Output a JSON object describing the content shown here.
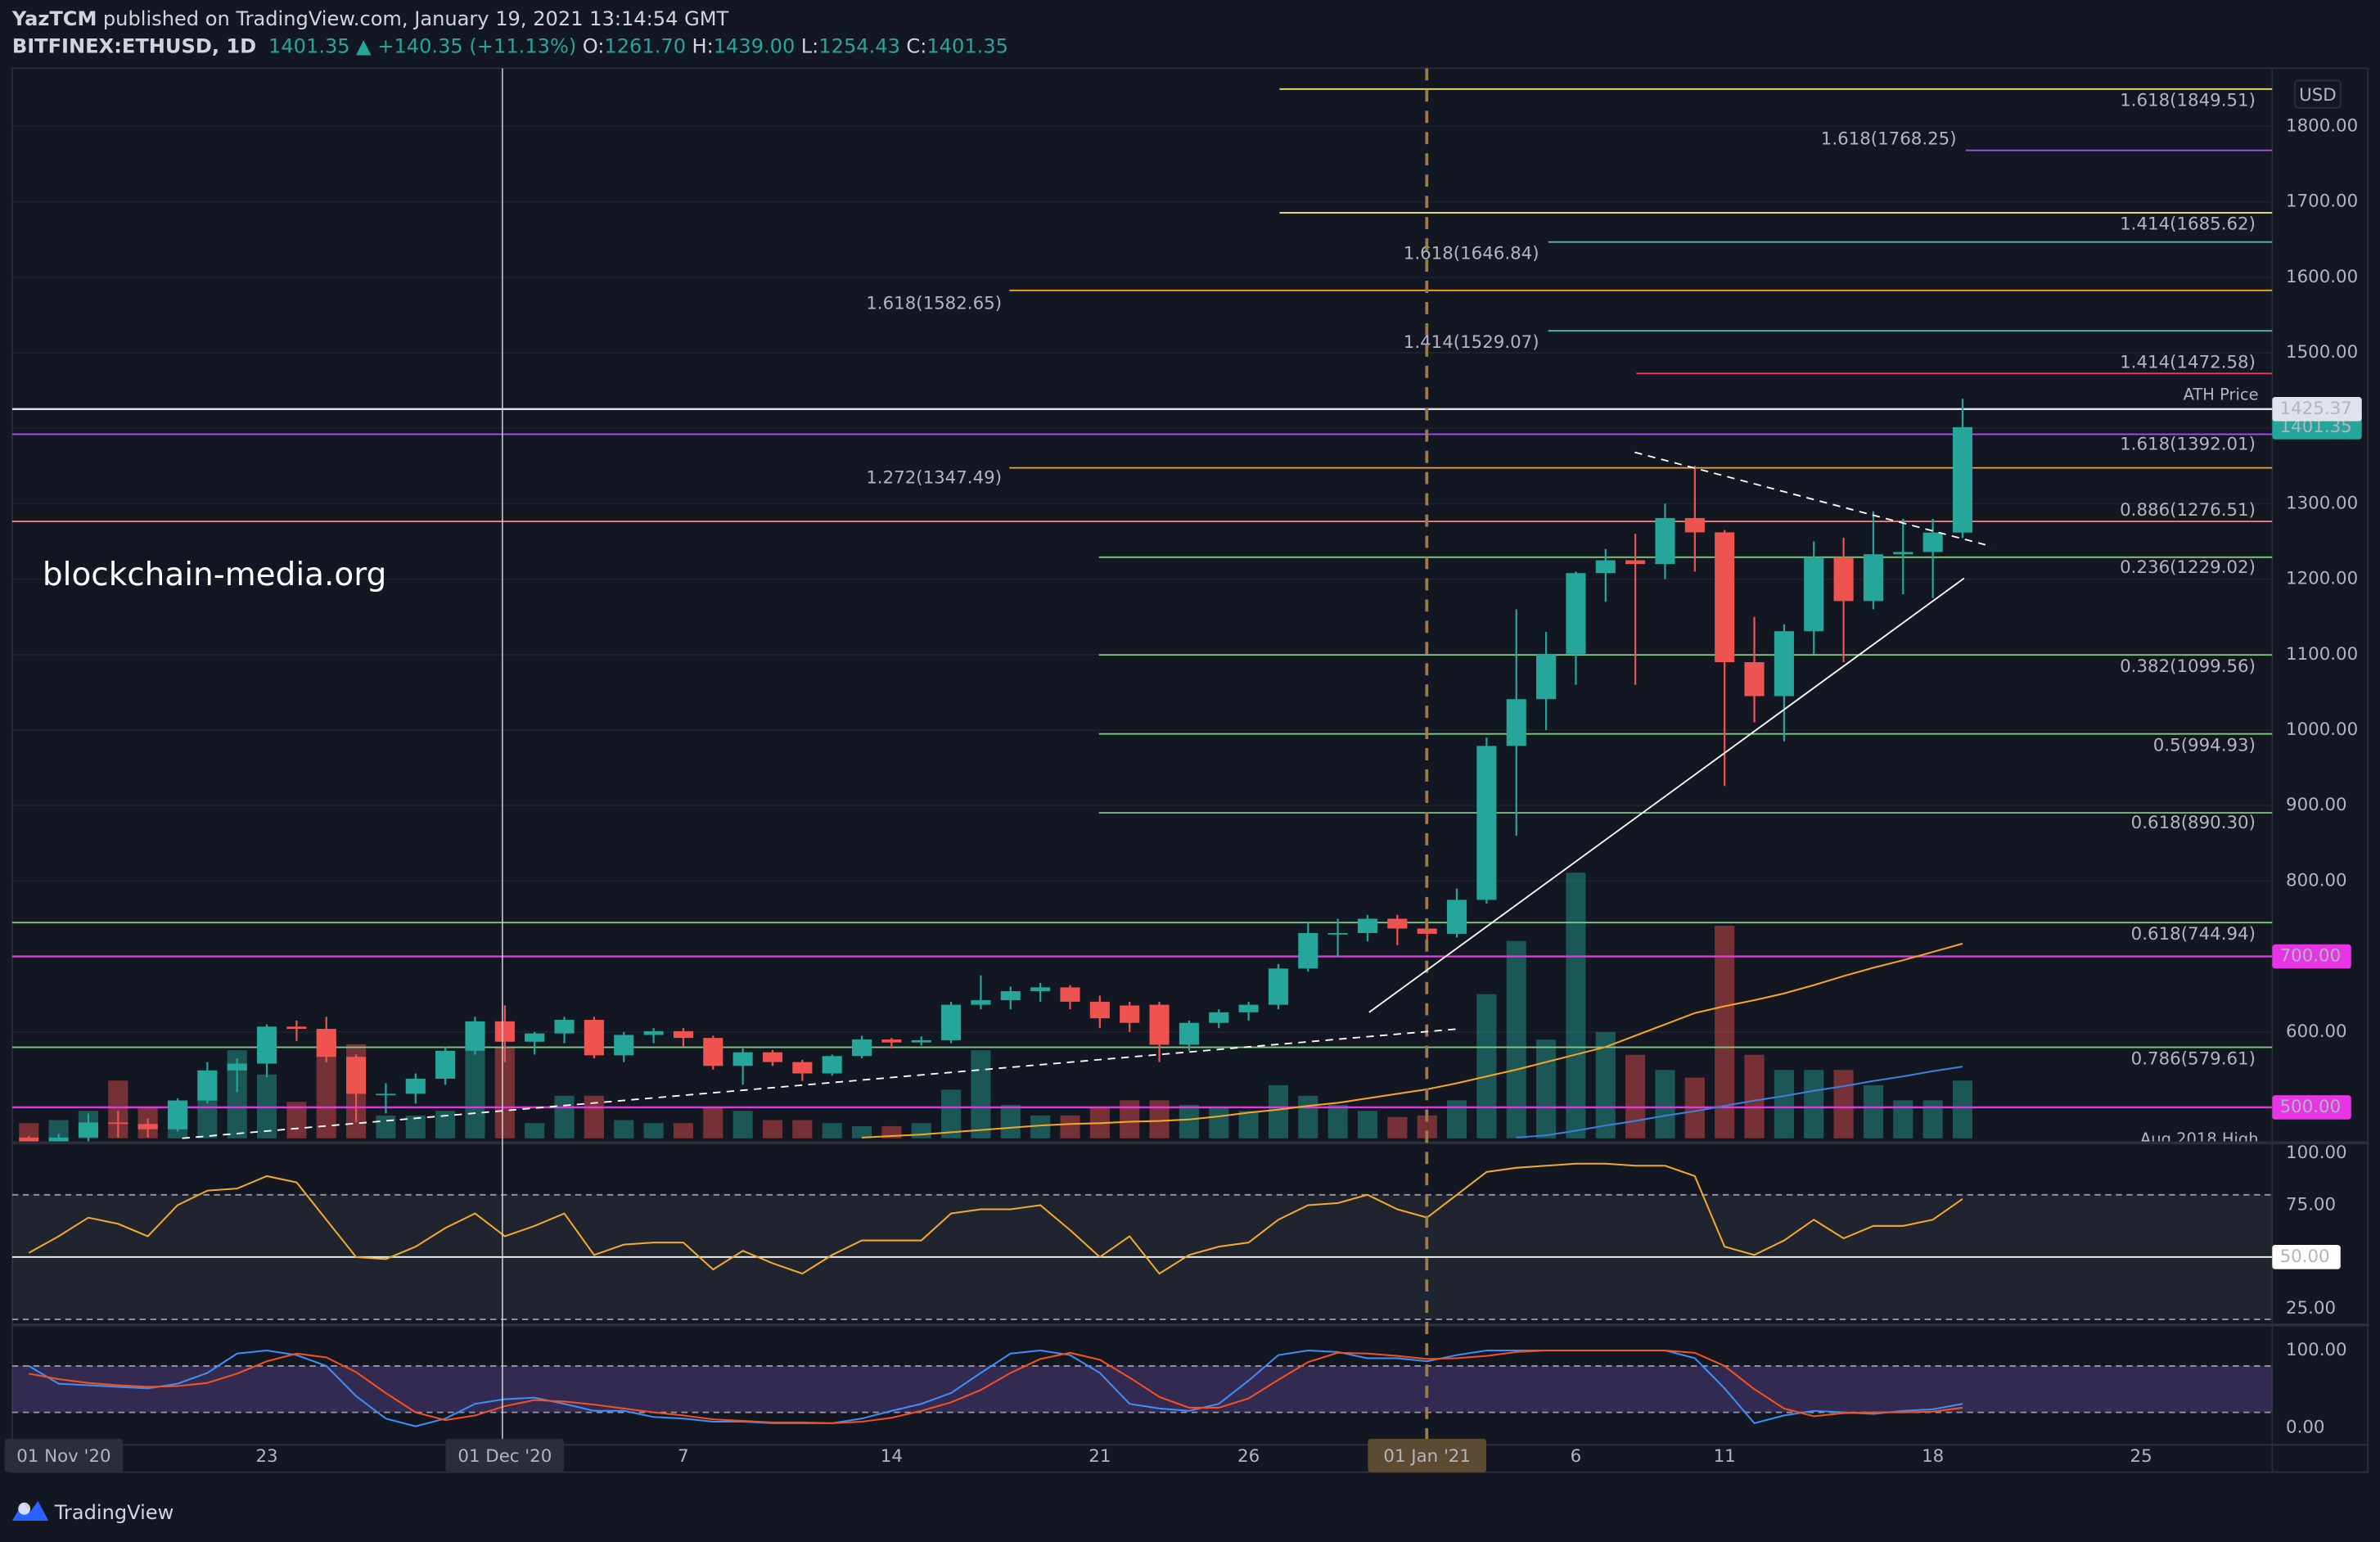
{
  "header": {
    "author": "YazTCM",
    "published": "published on TradingView.com, January 19, 2021 13:14:54 GMT",
    "symbol": "BITFINEX:ETHUSD, 1D",
    "last": "1401.35",
    "change": "▲ +140.35 (+11.13%)",
    "ohlc": [
      {
        "key": "O:",
        "value": "1261.70"
      },
      {
        "key": "H:",
        "value": "1439.00"
      },
      {
        "key": "L:",
        "value": "1254.43"
      },
      {
        "key": "C:",
        "value": "1401.35"
      }
    ]
  },
  "watermark": "blockchain-media.org",
  "footer": "TradingView",
  "chart_data": {
    "type": "candlestick",
    "currency": "USD",
    "x_left_label": "01 Nov '20",
    "categories": [
      null,
      null,
      null,
      null,
      null,
      null,
      null,
      null,
      "23",
      null,
      null,
      null,
      null,
      null,
      null,
      null,
      "01 Dec '20",
      null,
      null,
      null,
      null,
      null,
      "7",
      null,
      null,
      null,
      null,
      null,
      null,
      "14",
      null,
      null,
      null,
      null,
      null,
      null,
      "21",
      null,
      null,
      null,
      null,
      "26",
      null,
      null,
      null,
      null,
      null,
      "01 Jan '21",
      null,
      null,
      null,
      null,
      "6",
      null,
      null,
      null,
      null,
      "11",
      null,
      null,
      null,
      null,
      null,
      null,
      "18",
      null,
      null,
      null,
      null,
      null,
      null,
      "25"
    ],
    "open": [
      460,
      448,
      460,
      480,
      478,
      471,
      509,
      549,
      558,
      607,
      604,
      567,
      518,
      518,
      538,
      575,
      614,
      587,
      598,
      616,
      569,
      596,
      601,
      592,
      555,
      573,
      560,
      545,
      568,
      590,
      586,
      589,
      636,
      642,
      654,
      659,
      640,
      635,
      636,
      583,
      612,
      626,
      636,
      684,
      731,
      731,
      750,
      737,
      730,
      775,
      979,
      1041,
      1101,
      1208,
      1225,
      1220,
      1281,
      1262,
      1090,
      1045,
      1131,
      1229,
      1171,
      1233,
      1236,
      1261.7,
      null,
      null,
      null,
      null,
      null,
      null
    ],
    "high": [
      462,
      465,
      492,
      495,
      485,
      512,
      560,
      565,
      610,
      615,
      620,
      570,
      532,
      545,
      580,
      620,
      635,
      600,
      620,
      620,
      600,
      605,
      605,
      595,
      578,
      576,
      563,
      570,
      595,
      592,
      594,
      640,
      675,
      660,
      665,
      662,
      648,
      640,
      640,
      615,
      630,
      640,
      690,
      745,
      750,
      755,
      755,
      750,
      790,
      990,
      1160,
      1130,
      1210,
      1240,
      1260,
      1300,
      1350,
      1265,
      1150,
      1140,
      1250,
      1255,
      1290,
      1280,
      1280,
      1439.0,
      null,
      null,
      null,
      null,
      null,
      null
    ],
    "low": [
      440,
      440,
      455,
      460,
      460,
      468,
      505,
      520,
      540,
      588,
      560,
      480,
      492,
      505,
      530,
      570,
      560,
      570,
      585,
      565,
      560,
      585,
      580,
      550,
      530,
      555,
      535,
      542,
      565,
      578,
      582,
      585,
      630,
      630,
      640,
      630,
      605,
      600,
      560,
      575,
      605,
      615,
      630,
      680,
      700,
      720,
      715,
      715,
      725,
      770,
      860,
      1000,
      1060,
      1170,
      1060,
      1200,
      1210,
      926,
      1010,
      985,
      1100,
      1090,
      1160,
      1180,
      1175,
      1254.43,
      null,
      null,
      null,
      null,
      null,
      null
    ],
    "close": [
      448,
      460,
      480,
      478,
      471,
      509,
      549,
      558,
      607,
      604,
      567,
      518,
      518,
      538,
      575,
      614,
      587,
      598,
      616,
      569,
      596,
      601,
      592,
      555,
      573,
      560,
      545,
      568,
      590,
      586,
      589,
      636,
      642,
      654,
      659,
      640,
      618,
      612,
      583,
      612,
      626,
      636,
      684,
      731,
      731,
      750,
      737,
      730,
      775,
      979,
      1041,
      1101,
      1208,
      1225,
      1220,
      1281,
      1262,
      1090,
      1045,
      1131,
      1229,
      1171,
      1233,
      1236,
      1261.7,
      1401.35,
      null,
      null,
      null,
      null,
      null,
      null
    ],
    "up_color": "#26a69a",
    "down_color": "#ef5350",
    "volume": [
      10,
      12,
      18,
      38,
      20,
      25,
      40,
      58,
      42,
      24,
      65,
      62,
      15,
      15,
      18,
      60,
      60,
      10,
      28,
      28,
      12,
      10,
      10,
      20,
      18,
      12,
      12,
      10,
      8,
      8,
      10,
      32,
      58,
      22,
      15,
      15,
      20,
      25,
      25,
      22,
      20,
      18,
      35,
      28,
      22,
      18,
      14,
      15,
      25,
      95,
      130,
      65,
      175,
      70,
      55,
      45,
      40,
      140,
      55,
      45,
      45,
      45,
      35,
      25,
      25,
      38,
      null,
      null,
      null,
      null,
      null,
      null
    ],
    "ylim": [
      455,
      1877
    ],
    "yticks": [
      {
        "value": 600,
        "label": "600.00"
      },
      {
        "value": 700,
        "label": "700.00"
      },
      {
        "value": 800,
        "label": "800.00"
      },
      {
        "value": 900,
        "label": "900.00"
      },
      {
        "value": 1000,
        "label": "1000.00"
      },
      {
        "value": 1100,
        "label": "1100.00"
      },
      {
        "value": 1200,
        "label": "1200.00"
      },
      {
        "value": 1300,
        "label": "1300.00"
      },
      {
        "value": 1400,
        "label": "1400.00"
      },
      {
        "value": 1500,
        "label": "1500.00"
      },
      {
        "value": 1600,
        "label": "1600.00"
      },
      {
        "value": 1700,
        "label": "1700.00"
      },
      {
        "value": 1800,
        "label": "1800.00"
      }
    ],
    "grid": true,
    "moving_averages": [
      {
        "color": "#f5a623",
        "values": [
          null,
          null,
          null,
          null,
          null,
          null,
          null,
          null,
          null,
          null,
          null,
          null,
          null,
          null,
          null,
          null,
          null,
          null,
          null,
          null,
          null,
          null,
          null,
          null,
          null,
          null,
          null,
          null,
          460,
          462,
          464,
          467,
          470,
          473,
          476,
          478,
          479,
          481,
          482,
          484,
          488,
          493,
          497,
          502,
          506,
          512,
          518,
          524,
          532,
          541,
          550,
          560,
          570,
          580,
          595,
          610,
          625,
          634,
          642,
          651,
          662,
          674,
          685,
          695,
          706,
          717,
          null,
          null,
          null,
          null,
          null,
          null
        ]
      },
      {
        "color": "#3d7fd9",
        "values": [
          null,
          null,
          null,
          null,
          null,
          null,
          null,
          null,
          null,
          null,
          null,
          null,
          null,
          null,
          null,
          null,
          null,
          null,
          null,
          null,
          null,
          null,
          null,
          null,
          null,
          null,
          null,
          null,
          null,
          null,
          null,
          null,
          null,
          null,
          null,
          null,
          null,
          null,
          null,
          null,
          null,
          null,
          null,
          null,
          null,
          null,
          null,
          null,
          null,
          null,
          460,
          463,
          469,
          476,
          482,
          489,
          495,
          502,
          509,
          515,
          522,
          528,
          535,
          541,
          548,
          554,
          null,
          null,
          null,
          null,
          null,
          null
        ]
      }
    ],
    "levels": [
      {
        "label": "1.618(1849.51)",
        "value": 1849.51,
        "color": "#f0e266"
      },
      {
        "label": "1.618(1768.25)",
        "value": 1768.25,
        "color": "#a64ef0"
      },
      {
        "label": "1.414(1685.62)",
        "value": 1685.62,
        "color": "#f0e266"
      },
      {
        "label": "1.618(1646.84)",
        "value": 1646.84,
        "color": "#5bb8aa"
      },
      {
        "label": "1.618(1582.65)",
        "value": 1582.65,
        "color": "#f5a623"
      },
      {
        "label": "1.414(1529.07)",
        "value": 1529.07,
        "color": "#5bb8aa"
      },
      {
        "label": "1.414(1472.58)",
        "value": 1472.58,
        "color": "#f2365a"
      },
      {
        "label": "1.618(1392.01)",
        "value": 1392.01,
        "color": "#a64ef0"
      },
      {
        "label": "1.272(1347.49)",
        "value": 1347.49,
        "color": "#f5a623"
      },
      {
        "label": "0.886(1276.51)",
        "value": 1276.51,
        "color": "#f77b7b"
      },
      {
        "label": "0.236(1229.02)",
        "value": 1229.02,
        "color": "#81c784"
      },
      {
        "label": "0.382(1099.56)",
        "value": 1099.56,
        "color": "#81c784"
      },
      {
        "label": "0.5(994.93)",
        "value": 994.93,
        "color": "#81c784"
      },
      {
        "label": "0.618(890.30)",
        "value": 890.3,
        "color": "#81c784"
      },
      {
        "label": "0.618(744.94)",
        "value": 744.94,
        "color": "#81c784"
      },
      {
        "label": "0.786(579.61)",
        "value": 579.61,
        "color": "#81c784"
      }
    ],
    "price_lines": [
      {
        "value": 1425.37,
        "tag": "1425.37",
        "note": "ATH Price",
        "color": "#e0e3eb",
        "text_color": "#131722"
      },
      {
        "value": 700,
        "tag": "700.00",
        "color": "#e535e5",
        "text_color": "#ffffff"
      },
      {
        "value": 500,
        "tag": "500.00",
        "color": "#e535e5",
        "text_color": "#ffffff"
      }
    ],
    "bottom_note": "Aug 2018 High",
    "rsi": {
      "color": "#f0a92d",
      "values": [
        52,
        60,
        69,
        66,
        60,
        75,
        82,
        83,
        89,
        86,
        68,
        50,
        49,
        55,
        64,
        71,
        60,
        65,
        71,
        51,
        56,
        57,
        57,
        44,
        53,
        47,
        42,
        51,
        58,
        58,
        58,
        71,
        73,
        73,
        75,
        63,
        50,
        60,
        42,
        51,
        55,
        57,
        68,
        75,
        76,
        80,
        73,
        69,
        80,
        91,
        93,
        94,
        95,
        95,
        94,
        94,
        89,
        55,
        51,
        58,
        68,
        59,
        65,
        65,
        68,
        78,
        null,
        null,
        null,
        null,
        null,
        null
      ],
      "ylim": [
        18,
        104.3
      ],
      "yticks": [
        {
          "value": 100,
          "label": "100.00"
        },
        {
          "value": 75,
          "label": "75.00"
        },
        {
          "value": 25,
          "label": "25.00"
        }
      ],
      "midline": {
        "value": 50,
        "label": "50.00"
      },
      "bands": [
        80,
        20
      ]
    },
    "stoch": {
      "ylim": [
        -22,
        131
      ],
      "yticks": [
        {
          "value": 100,
          "label": "100.00"
        },
        {
          "value": 0,
          "label": "0.00"
        }
      ],
      "bands": [
        80,
        20
      ],
      "k": {
        "color": "#3f8ef5",
        "values": [
          80,
          57,
          55,
          53,
          51,
          57,
          71,
          96,
          100,
          94,
          80,
          41,
          12,
          2,
          12,
          31,
          37,
          39,
          31,
          22,
          22,
          14,
          12,
          8,
          8,
          6,
          6,
          6,
          12,
          22,
          31,
          45,
          71,
          96,
          100,
          94,
          71,
          31,
          25,
          22,
          31,
          61,
          94,
          100,
          98,
          90,
          90,
          86,
          94,
          100,
          100,
          100,
          100,
          100,
          100,
          100,
          90,
          51,
          6,
          16,
          22,
          20,
          18,
          22,
          24,
          31,
          null,
          null,
          null,
          null,
          null,
          null
        ]
      },
      "d": {
        "color": "#f4511e",
        "values": [
          70,
          63,
          58,
          55,
          53,
          54,
          58,
          70,
          86,
          96,
          91,
          72,
          45,
          20,
          10,
          16,
          28,
          36,
          34,
          30,
          25,
          20,
          16,
          11,
          9,
          7,
          7,
          6,
          8,
          13,
          22,
          33,
          49,
          71,
          89,
          97,
          88,
          65,
          40,
          26,
          26,
          38,
          62,
          85,
          97,
          96,
          93,
          89,
          90,
          93,
          98,
          100,
          100,
          100,
          100,
          100,
          97,
          80,
          50,
          25,
          15,
          19,
          20,
          20,
          21,
          26,
          null,
          null,
          null,
          null,
          null,
          null
        ]
      }
    }
  }
}
